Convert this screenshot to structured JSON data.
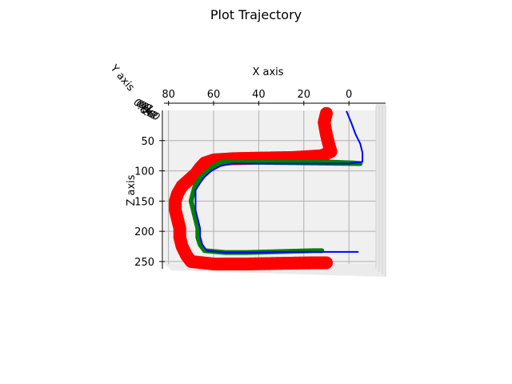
{
  "chart_data": {
    "type": "line",
    "projection": "3d",
    "title": "Plot Trajectory",
    "xlabel": "X axis",
    "ylabel": "Y axis",
    "zlabel": "Z axis",
    "x_ticks": [
      "80",
      "60",
      "40",
      "20",
      "0"
    ],
    "z_ticks": [
      "50",
      "100",
      "150",
      "200",
      "250"
    ],
    "y_ticks_overlapping": [
      "0.0",
      "0.2",
      "0.4",
      "0.6",
      "0.8",
      "1.0"
    ],
    "xlim": [
      82,
      -12
    ],
    "zlim": [
      0,
      262
    ],
    "z_inverted": true,
    "grid": true,
    "series": [
      {
        "color": "#ff0000",
        "style": "wide-band",
        "points": [
          [
            10,
            5
          ],
          [
            11,
            20
          ],
          [
            10,
            40
          ],
          [
            9,
            55
          ],
          [
            8,
            68
          ],
          [
            12,
            75
          ],
          [
            25,
            78
          ],
          [
            40,
            79
          ],
          [
            52,
            80
          ],
          [
            60,
            82
          ],
          [
            64,
            87
          ],
          [
            66,
            95
          ],
          [
            68,
            105
          ],
          [
            71,
            115
          ],
          [
            74,
            125
          ],
          [
            76,
            138
          ],
          [
            77,
            150
          ],
          [
            77,
            165
          ],
          [
            76,
            180
          ],
          [
            75,
            195
          ],
          [
            75,
            210
          ],
          [
            74,
            225
          ],
          [
            72,
            240
          ],
          [
            70,
            250
          ],
          [
            60,
            254
          ],
          [
            45,
            254
          ],
          [
            30,
            253
          ],
          [
            15,
            252
          ],
          [
            10,
            252
          ]
        ]
      },
      {
        "color": "#008000",
        "style": "band",
        "points": [
          [
            55,
            84
          ],
          [
            52,
            85
          ],
          [
            40,
            85
          ],
          [
            30,
            85
          ],
          [
            20,
            85
          ],
          [
            10,
            85
          ],
          [
            5,
            86
          ],
          [
            -2,
            87
          ],
          [
            -5,
            88
          ],
          [
            56,
            85
          ],
          [
            60,
            92
          ],
          [
            63,
            102
          ],
          [
            66,
            112
          ],
          [
            68,
            122
          ],
          [
            69,
            135
          ],
          [
            70,
            150
          ],
          [
            69,
            165
          ],
          [
            68,
            180
          ],
          [
            67,
            195
          ],
          [
            67,
            210
          ],
          [
            66,
            222
          ],
          [
            64,
            232
          ],
          [
            55,
            235
          ],
          [
            45,
            235
          ],
          [
            35,
            234
          ],
          [
            25,
            233
          ],
          [
            15,
            232
          ],
          [
            12,
            232
          ]
        ]
      },
      {
        "color": "#0000ff",
        "style": "line",
        "points": [
          [
            1,
            2
          ],
          [
            -1,
            20
          ],
          [
            -3,
            40
          ],
          [
            -5,
            55
          ],
          [
            -6,
            70
          ],
          [
            -6,
            85
          ],
          [
            0,
            88
          ],
          [
            10,
            88
          ],
          [
            25,
            88
          ],
          [
            40,
            88
          ],
          [
            52,
            88
          ],
          [
            57,
            92
          ],
          [
            61,
            100
          ],
          [
            64,
            110
          ],
          [
            66,
            120
          ],
          [
            68,
            132
          ],
          [
            68,
            148
          ],
          [
            68,
            165
          ],
          [
            67,
            180
          ],
          [
            66,
            195
          ],
          [
            66,
            208
          ],
          [
            65,
            222
          ],
          [
            63,
            232
          ],
          [
            55,
            235
          ],
          [
            40,
            235
          ],
          [
            25,
            234
          ],
          [
            10,
            234
          ],
          [
            0,
            234
          ],
          [
            -4,
            234
          ]
        ]
      }
    ]
  }
}
